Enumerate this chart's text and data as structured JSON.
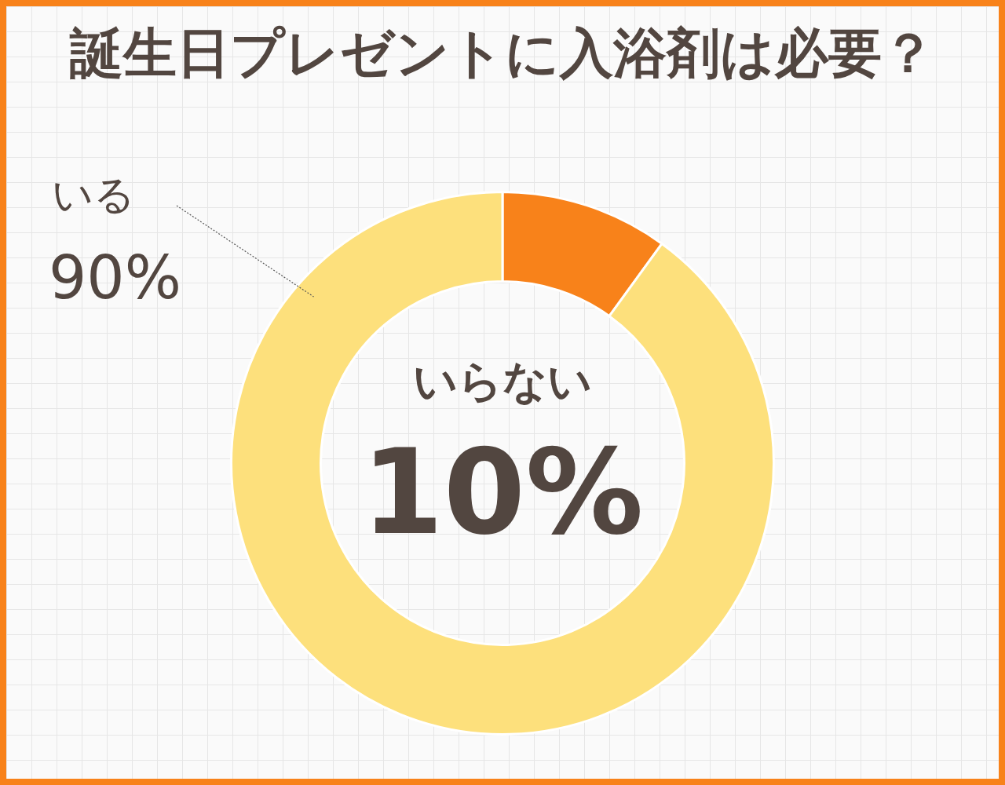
{
  "chart_data": {
    "type": "donut",
    "title": "誕生日プレゼントに入浴剤は必要？",
    "categories": [
      "いらない",
      "いる"
    ],
    "values": [
      10,
      90
    ],
    "colors": [
      "#f8821a",
      "#fde07c"
    ],
    "value_labels": [
      "10%",
      "90%"
    ],
    "legend": false
  }
}
